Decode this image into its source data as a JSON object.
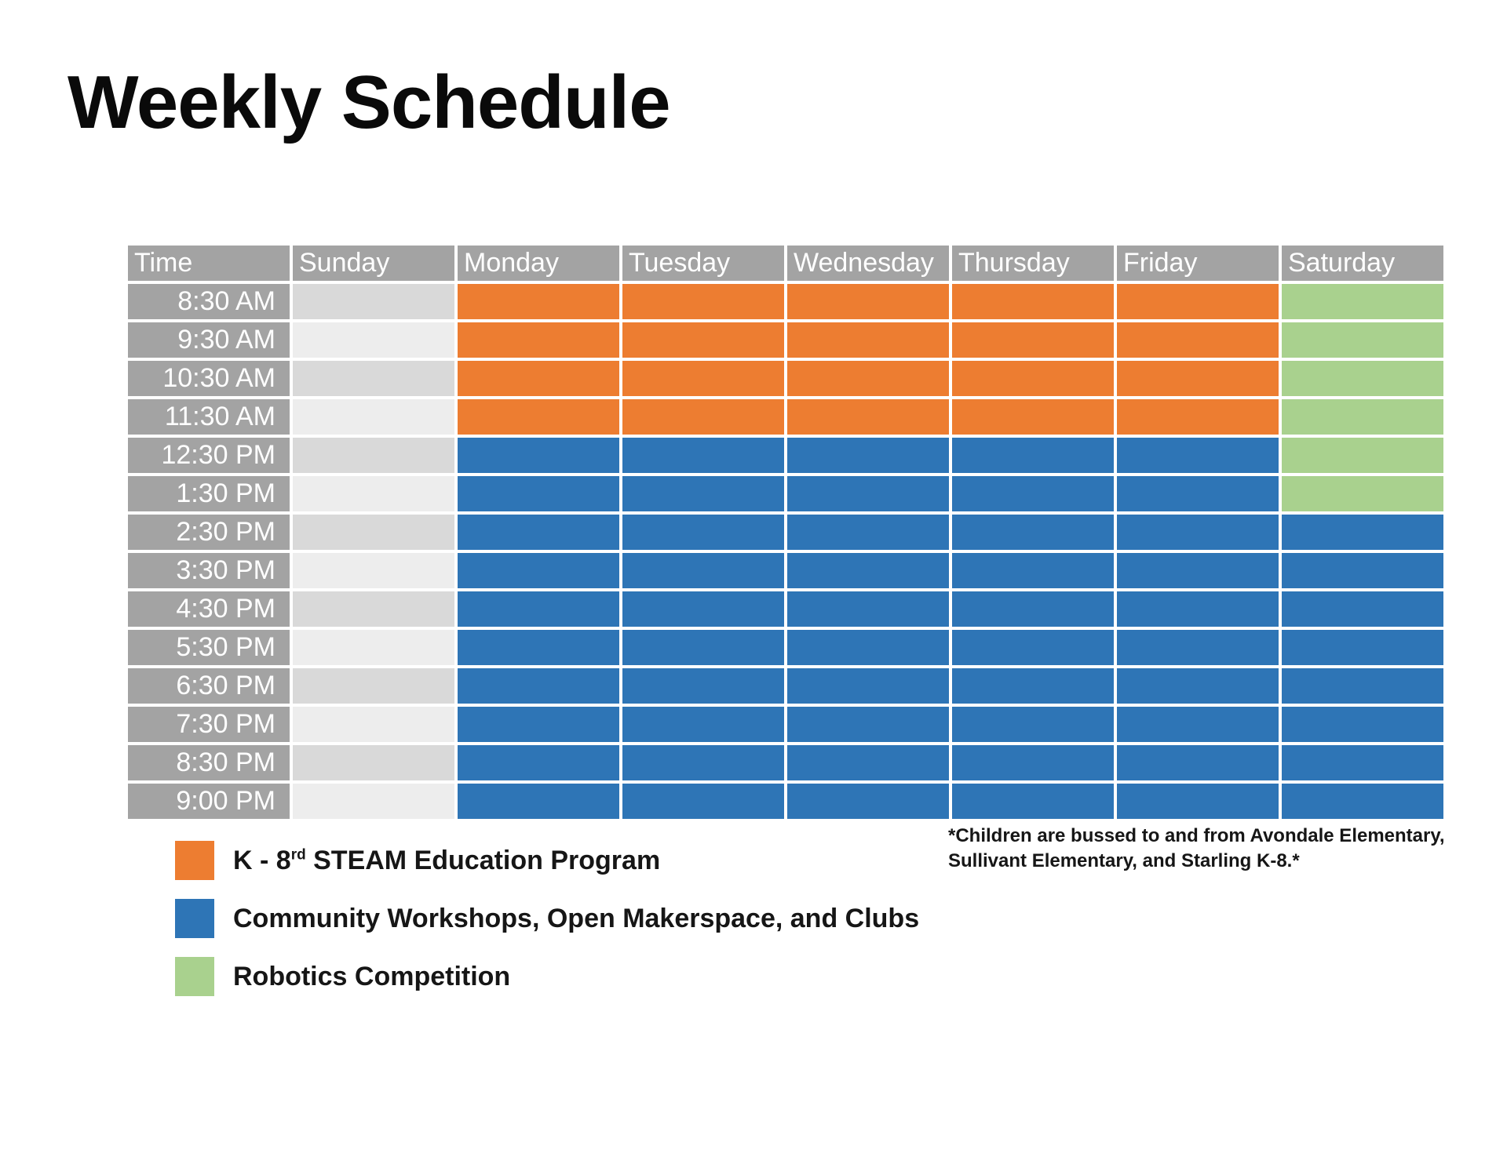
{
  "title": "Weekly Schedule",
  "header": {
    "time_label": "Time",
    "days": [
      "Sunday",
      "Monday",
      "Tuesday",
      "Wednesday",
      "Thursday",
      "Friday",
      "Saturday"
    ]
  },
  "times": [
    "8:30 AM",
    "9:30 AM",
    "10:30 AM",
    "11:30 AM",
    "12:30 PM",
    "1:30 PM",
    "2:30 PM",
    "3:30 PM",
    "4:30 PM",
    "5:30 PM",
    "6:30 PM",
    "7:30 PM",
    "8:30 PM",
    "9:00 PM"
  ],
  "programs": {
    "steam": {
      "label_prefix": "K - 8",
      "label_sup": "rd",
      "label_suffix": " STEAM Education Program",
      "color": "#ed7d31"
    },
    "community": {
      "label": "Community Workshops, Open Makerspace, and Clubs",
      "color": "#2e75b6"
    },
    "robotics": {
      "label": "Robotics Competition",
      "color": "#a9d18e"
    }
  },
  "closed_colors": [
    "#d9d9d9",
    "#ededed"
  ],
  "schedule": [
    [
      "closed",
      "steam",
      "steam",
      "steam",
      "steam",
      "steam",
      "robotics"
    ],
    [
      "closed",
      "steam",
      "steam",
      "steam",
      "steam",
      "steam",
      "robotics"
    ],
    [
      "closed",
      "steam",
      "steam",
      "steam",
      "steam",
      "steam",
      "robotics"
    ],
    [
      "closed",
      "steam",
      "steam",
      "steam",
      "steam",
      "steam",
      "robotics"
    ],
    [
      "closed",
      "community",
      "community",
      "community",
      "community",
      "community",
      "robotics"
    ],
    [
      "closed",
      "community",
      "community",
      "community",
      "community",
      "community",
      "robotics"
    ],
    [
      "closed",
      "community",
      "community",
      "community",
      "community",
      "community",
      "community"
    ],
    [
      "closed",
      "community",
      "community",
      "community",
      "community",
      "community",
      "community"
    ],
    [
      "closed",
      "community",
      "community",
      "community",
      "community",
      "community",
      "community"
    ],
    [
      "closed",
      "community",
      "community",
      "community",
      "community",
      "community",
      "community"
    ],
    [
      "closed",
      "community",
      "community",
      "community",
      "community",
      "community",
      "community"
    ],
    [
      "closed",
      "community",
      "community",
      "community",
      "community",
      "community",
      "community"
    ],
    [
      "closed",
      "community",
      "community",
      "community",
      "community",
      "community",
      "community"
    ],
    [
      "closed",
      "community",
      "community",
      "community",
      "community",
      "community",
      "community"
    ]
  ],
  "footnote": "*Children are bussed to and from Avondale Elementary, Sullivant Elementary, and Starling K-8.*"
}
